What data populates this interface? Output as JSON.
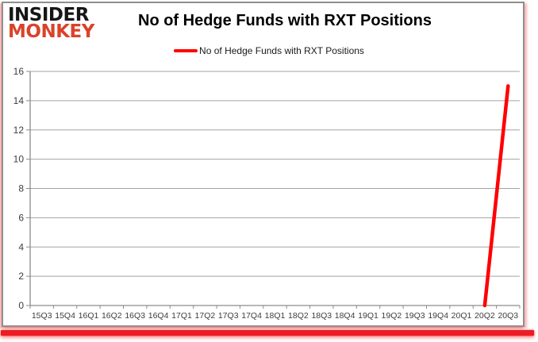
{
  "logo": {
    "line1": "INSIDER",
    "line2": "MONKEY"
  },
  "header": {
    "title": "No of Hedge Funds with RXT Positions"
  },
  "legend": {
    "label": "No of Hedge Funds with RXT Positions"
  },
  "colors": {
    "line": "#ff0000",
    "grid": "#a3a3a3",
    "axis": "#8c8c8c",
    "tick_text": "#3d3d3d",
    "logo_black": "#161616",
    "logo_red": "#d9432a",
    "frame_border": "#8f8f8f",
    "bottom_bar": "#ec1c24"
  },
  "chart_data": {
    "type": "line",
    "title": "No of Hedge Funds with RXT Positions",
    "legend_entries": [
      "No of Hedge Funds with RXT Positions"
    ],
    "legend_position": "top",
    "grid": "horizontal",
    "categories": [
      "15Q3",
      "15Q4",
      "16Q1",
      "16Q2",
      "16Q3",
      "16Q4",
      "17Q1",
      "17Q2",
      "17Q3",
      "17Q4",
      "18Q1",
      "18Q2",
      "18Q3",
      "18Q4",
      "19Q1",
      "19Q2",
      "19Q3",
      "19Q4",
      "20Q1",
      "20Q2",
      "20Q3"
    ],
    "series": [
      {
        "name": "No of Hedge Funds with RXT Positions",
        "color": "#ff0000",
        "values": [
          null,
          null,
          null,
          null,
          null,
          null,
          null,
          null,
          null,
          null,
          null,
          null,
          null,
          null,
          null,
          null,
          null,
          null,
          null,
          0,
          15
        ]
      }
    ],
    "xlabel": "",
    "ylabel": "",
    "ylim": [
      0,
      16
    ],
    "ytick_step": 2
  }
}
